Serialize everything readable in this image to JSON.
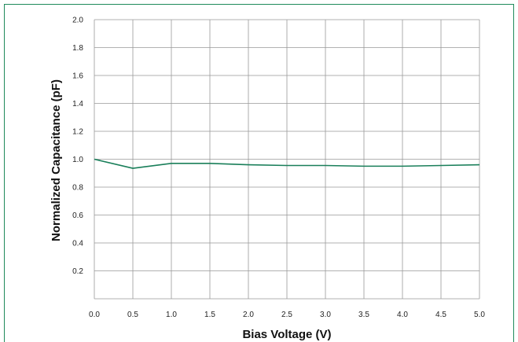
{
  "chart_data": {
    "type": "line",
    "xlabel": "Bias Voltage (V)",
    "ylabel": "Normalized  Capacitance  (pF)",
    "xlim": [
      0.0,
      5.0
    ],
    "ylim": [
      0.0,
      2.0
    ],
    "x_ticks": [
      "0.0",
      "0.5",
      "1.0",
      "1.5",
      "2.0",
      "2.5",
      "3.0",
      "3.5",
      "4.0",
      "4.5",
      "5.0"
    ],
    "y_ticks": [
      "0.2",
      "0.4",
      "0.6",
      "0.8",
      "1.0",
      "1.2",
      "1.4",
      "1.6",
      "1.8",
      "2.0"
    ],
    "grid": true,
    "series": [
      {
        "color": "#1a7f5a",
        "x": [
          0.0,
          0.5,
          1.0,
          1.5,
          2.0,
          2.5,
          3.0,
          3.5,
          4.0,
          4.5,
          5.0
        ],
        "y": [
          1.0,
          0.935,
          0.97,
          0.97,
          0.96,
          0.955,
          0.955,
          0.95,
          0.95,
          0.955,
          0.96
        ]
      }
    ]
  },
  "colors": {
    "frame_border": "#1f8a5b",
    "grid": "#999999",
    "line": "#1a7f5a"
  }
}
